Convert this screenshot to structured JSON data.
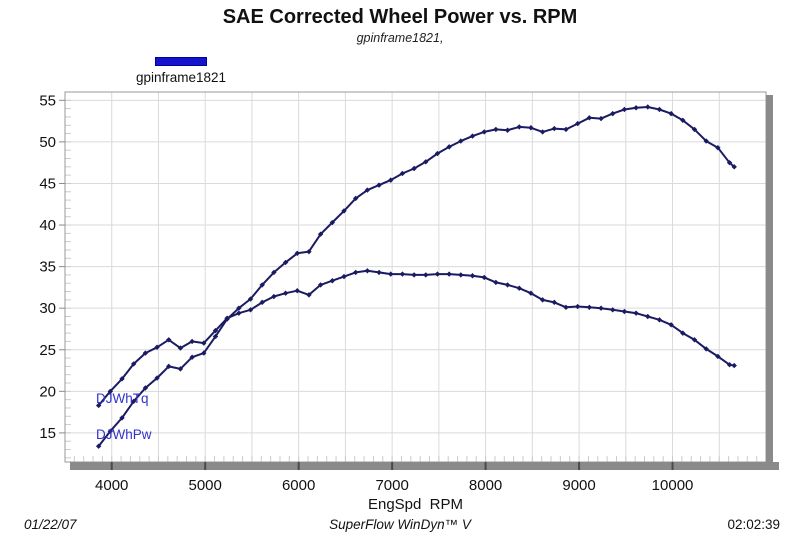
{
  "header": {
    "title": "SAE Corrected Wheel Power vs. RPM",
    "subtitle": "gpinframe1821,"
  },
  "legend": {
    "label": "gpinframe1821",
    "swatch_color": "#1414cc"
  },
  "footer": {
    "date": "01/22/07",
    "app": "SuperFlow WinDyn™ V",
    "time": "02:02:39"
  },
  "chart_data": {
    "type": "line",
    "title": "SAE Corrected Wheel Power vs. RPM",
    "subtitle": "gpinframe1821,",
    "xlabel": "EngSpd  RPM",
    "ylabel": "",
    "xlim": [
      3500,
      11000
    ],
    "ylim": [
      11.5,
      56
    ],
    "x_ticks": [
      4000,
      5000,
      6000,
      7000,
      8000,
      9000,
      10000
    ],
    "y_ticks": [
      15,
      20,
      25,
      30,
      35,
      40,
      45,
      50,
      55
    ],
    "x_minor_step": 100,
    "y_minor_step": 1,
    "grid": true,
    "grid_step_x": 500,
    "grid_step_y": 5,
    "legend_position": "top-left",
    "line_color": "#1b1b62",
    "label_color": "#3333cc",
    "grid_color": "#dadada",
    "frame_color": "#8a8a8a",
    "x": [
      3860,
      3985,
      4110,
      4235,
      4360,
      4485,
      4610,
      4735,
      4860,
      4985,
      5110,
      5235,
      5360,
      5485,
      5610,
      5735,
      5860,
      5985,
      6110,
      6235,
      6360,
      6485,
      6610,
      6735,
      6860,
      6985,
      7110,
      7235,
      7360,
      7485,
      7610,
      7735,
      7860,
      7985,
      8110,
      8235,
      8360,
      8485,
      8610,
      8735,
      8860,
      8985,
      9110,
      9235,
      9360,
      9485,
      9610,
      9735,
      9860,
      9985,
      10110,
      10235,
      10360,
      10485,
      10610,
      10660
    ],
    "series": [
      {
        "name": "DJWhTq",
        "values": [
          18.3,
          20.0,
          21.5,
          23.3,
          24.6,
          25.3,
          26.2,
          25.2,
          26.0,
          25.8,
          27.3,
          28.8,
          29.4,
          29.8,
          30.7,
          31.4,
          31.8,
          32.1,
          31.6,
          32.8,
          33.3,
          33.8,
          34.3,
          34.5,
          34.3,
          34.1,
          34.1,
          34.0,
          34.0,
          34.1,
          34.1,
          34.0,
          33.9,
          33.7,
          33.1,
          32.8,
          32.4,
          31.8,
          31.0,
          30.7,
          30.1,
          30.2,
          30.1,
          30.0,
          29.8,
          29.6,
          29.4,
          29.0,
          28.6,
          28.0,
          27.0,
          26.2,
          25.1,
          24.2,
          23.2,
          23.1
        ]
      },
      {
        "name": "DJWhPw",
        "values": [
          13.4,
          15.2,
          16.8,
          18.8,
          20.4,
          21.6,
          23.0,
          22.7,
          24.1,
          24.6,
          26.6,
          28.7,
          30.0,
          31.1,
          32.8,
          34.3,
          35.5,
          36.6,
          36.8,
          38.9,
          40.3,
          41.7,
          43.2,
          44.2,
          44.8,
          45.4,
          46.2,
          46.8,
          47.6,
          48.6,
          49.4,
          50.1,
          50.7,
          51.2,
          51.5,
          51.4,
          51.8,
          51.7,
          51.2,
          51.6,
          51.5,
          52.2,
          52.9,
          52.8,
          53.4,
          53.9,
          54.1,
          54.2,
          53.9,
          53.4,
          52.6,
          51.5,
          50.1,
          49.3,
          47.5,
          47.0
        ]
      }
    ]
  }
}
